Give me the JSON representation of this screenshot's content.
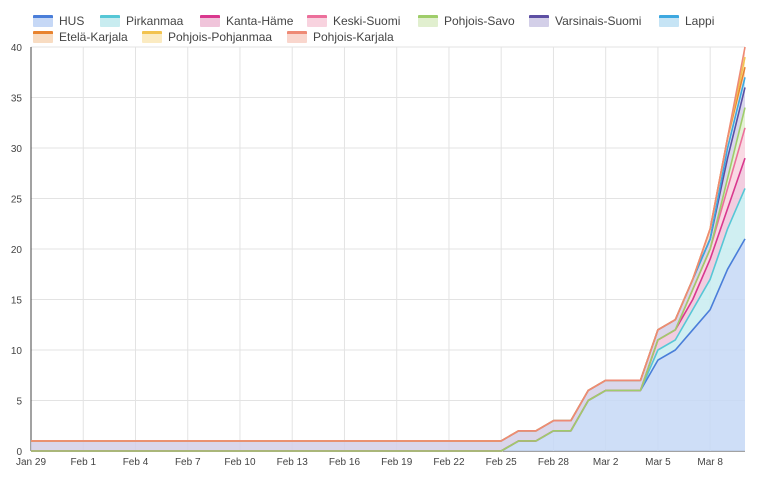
{
  "chart_data": {
    "type": "area",
    "stacked": true,
    "title": "",
    "xlabel": "",
    "ylabel": "",
    "ylim": [
      0,
      40
    ],
    "yticks": [
      "0",
      "5",
      "10",
      "15",
      "20",
      "25",
      "30",
      "35",
      "40"
    ],
    "grid": true,
    "legend_position": "top",
    "x": [
      "Jan 29",
      "Jan 30",
      "Jan 31",
      "Feb 1",
      "Feb 2",
      "Feb 3",
      "Feb 4",
      "Feb 5",
      "Feb 6",
      "Feb 7",
      "Feb 8",
      "Feb 9",
      "Feb 10",
      "Feb 11",
      "Feb 12",
      "Feb 13",
      "Feb 14",
      "Feb 15",
      "Feb 16",
      "Feb 17",
      "Feb 18",
      "Feb 19",
      "Feb 20",
      "Feb 21",
      "Feb 22",
      "Feb 23",
      "Feb 24",
      "Feb 25",
      "Feb 26",
      "Feb 27",
      "Feb 28",
      "Feb 29",
      "Mar 1",
      "Mar 2",
      "Mar 3",
      "Mar 4",
      "Mar 5",
      "Mar 6",
      "Mar 7",
      "Mar 8",
      "Mar 9",
      "Mar 10"
    ],
    "xtick_labels": [
      "Jan 29",
      "Feb 1",
      "Feb 4",
      "Feb 7",
      "Feb 10",
      "Feb 13",
      "Feb 16",
      "Feb 19",
      "Feb 22",
      "Feb 25",
      "Feb 28",
      "Mar 2",
      "Mar 5",
      "Mar 8"
    ],
    "series": [
      {
        "name": "HUS",
        "color": "#4a7ed9",
        "fill": "#c6d8f6",
        "values": [
          0,
          0,
          0,
          0,
          0,
          0,
          0,
          0,
          0,
          0,
          0,
          0,
          0,
          0,
          0,
          0,
          0,
          0,
          0,
          0,
          0,
          0,
          0,
          0,
          0,
          0,
          0,
          0,
          1,
          1,
          2,
          2,
          5,
          6,
          6,
          6,
          9,
          10,
          12,
          14,
          18,
          21
        ]
      },
      {
        "name": "Pirkanmaa",
        "color": "#56c7d6",
        "fill": "#c8ecf0",
        "values": [
          0,
          0,
          0,
          0,
          0,
          0,
          0,
          0,
          0,
          0,
          0,
          0,
          0,
          0,
          0,
          0,
          0,
          0,
          0,
          0,
          0,
          0,
          0,
          0,
          0,
          0,
          0,
          0,
          0,
          0,
          0,
          0,
          0,
          0,
          0,
          0,
          1,
          1,
          2,
          3,
          4,
          5
        ]
      },
      {
        "name": "Kanta-Häme",
        "color": "#d9388e",
        "fill": "#f0c4da",
        "values": [
          0,
          0,
          0,
          0,
          0,
          0,
          0,
          0,
          0,
          0,
          0,
          0,
          0,
          0,
          0,
          0,
          0,
          0,
          0,
          0,
          0,
          0,
          0,
          0,
          0,
          0,
          0,
          0,
          0,
          0,
          0,
          0,
          0,
          0,
          0,
          0,
          1,
          1,
          1,
          2,
          2,
          3
        ]
      },
      {
        "name": "Keski-Suomi",
        "color": "#ec6f9b",
        "fill": "#f8d3df",
        "values": [
          0,
          0,
          0,
          0,
          0,
          0,
          0,
          0,
          0,
          0,
          0,
          0,
          0,
          0,
          0,
          0,
          0,
          0,
          0,
          0,
          0,
          0,
          0,
          0,
          0,
          0,
          0,
          0,
          0,
          0,
          0,
          0,
          0,
          0,
          0,
          0,
          0,
          0,
          1,
          1,
          2,
          3
        ]
      },
      {
        "name": "Pohjois-Savo",
        "color": "#9fcd6a",
        "fill": "#e1efcf",
        "values": [
          0,
          0,
          0,
          0,
          0,
          0,
          0,
          0,
          0,
          0,
          0,
          0,
          0,
          0,
          0,
          0,
          0,
          0,
          0,
          0,
          0,
          0,
          0,
          0,
          0,
          0,
          0,
          0,
          0,
          0,
          0,
          0,
          0,
          0,
          0,
          0,
          0,
          0,
          0,
          0,
          1,
          2
        ]
      },
      {
        "name": "Varsinais-Suomi",
        "color": "#5d4fa3",
        "fill": "#d3cfe8",
        "values": [
          1,
          1,
          1,
          1,
          1,
          1,
          1,
          1,
          1,
          1,
          1,
          1,
          1,
          1,
          1,
          1,
          1,
          1,
          1,
          1,
          1,
          1,
          1,
          1,
          1,
          1,
          1,
          1,
          1,
          1,
          1,
          1,
          1,
          1,
          1,
          1,
          1,
          1,
          1,
          1,
          2,
          2
        ]
      },
      {
        "name": "Lappi",
        "color": "#3da8e0",
        "fill": "#c6e4f5",
        "values": [
          0,
          0,
          0,
          0,
          0,
          0,
          0,
          0,
          0,
          0,
          0,
          0,
          0,
          0,
          0,
          0,
          0,
          0,
          0,
          0,
          0,
          0,
          0,
          0,
          0,
          0,
          0,
          0,
          0,
          0,
          0,
          0,
          0,
          0,
          0,
          0,
          0,
          0,
          0,
          0,
          1,
          1
        ]
      },
      {
        "name": "Etelä-Karjala",
        "color": "#e8832f",
        "fill": "#f8dcc2",
        "values": [
          0,
          0,
          0,
          0,
          0,
          0,
          0,
          0,
          0,
          0,
          0,
          0,
          0,
          0,
          0,
          0,
          0,
          0,
          0,
          0,
          0,
          0,
          0,
          0,
          0,
          0,
          0,
          0,
          0,
          0,
          0,
          0,
          0,
          0,
          0,
          0,
          0,
          0,
          0,
          1,
          1,
          1
        ]
      },
      {
        "name": "Pohjois-Pohjanmaa",
        "color": "#f2c34f",
        "fill": "#fbebc2",
        "values": [
          0,
          0,
          0,
          0,
          0,
          0,
          0,
          0,
          0,
          0,
          0,
          0,
          0,
          0,
          0,
          0,
          0,
          0,
          0,
          0,
          0,
          0,
          0,
          0,
          0,
          0,
          0,
          0,
          0,
          0,
          0,
          0,
          0,
          0,
          0,
          0,
          0,
          0,
          0,
          0,
          0,
          1
        ]
      },
      {
        "name": "Pohjois-Karjala",
        "color": "#ee8a75",
        "fill": "#f9d6cd",
        "values": [
          0,
          0,
          0,
          0,
          0,
          0,
          0,
          0,
          0,
          0,
          0,
          0,
          0,
          0,
          0,
          0,
          0,
          0,
          0,
          0,
          0,
          0,
          0,
          0,
          0,
          0,
          0,
          0,
          0,
          0,
          0,
          0,
          0,
          0,
          0,
          0,
          0,
          0,
          0,
          0,
          0,
          1
        ]
      }
    ]
  }
}
